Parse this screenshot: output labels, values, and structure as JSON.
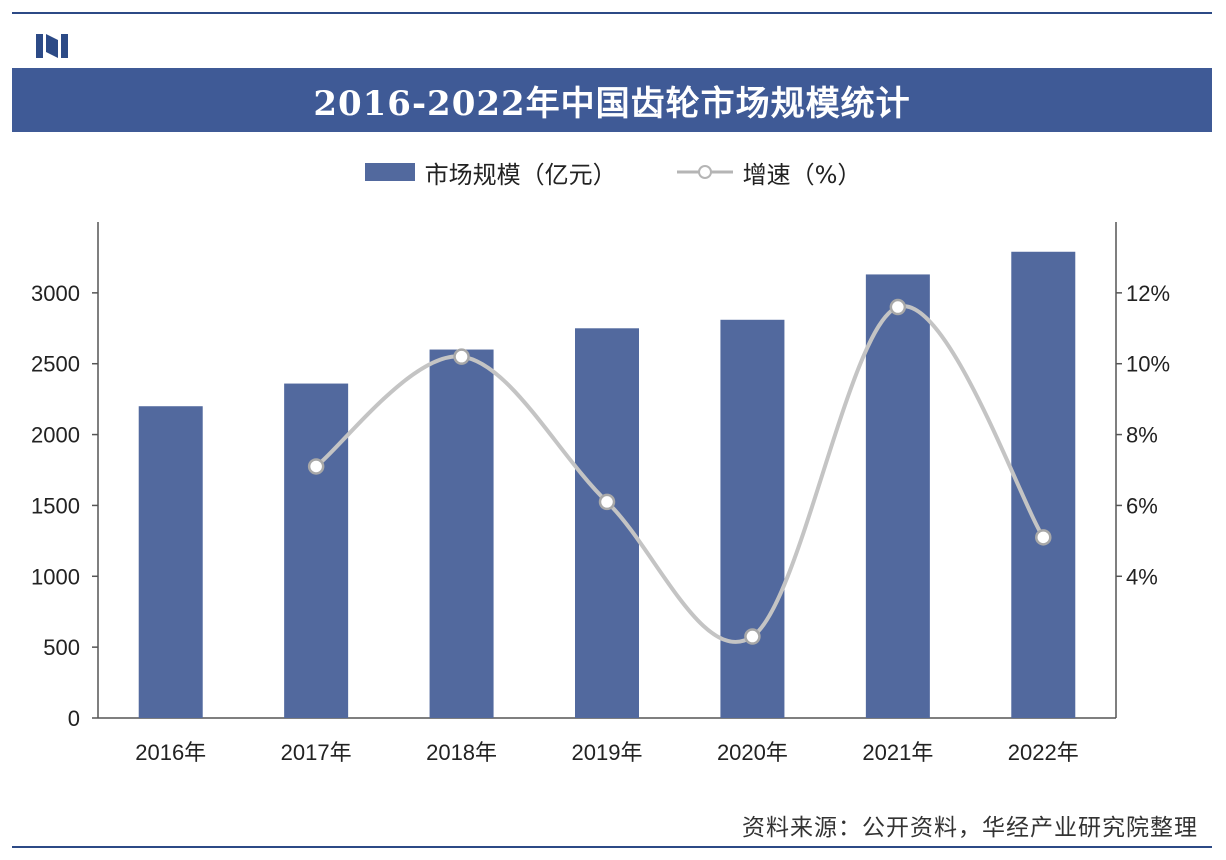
{
  "header": {
    "title": "2016-2022年中国齿轮市场规模统计"
  },
  "legend": {
    "bar_label": "市场规模（亿元）",
    "line_label": "增速（%）"
  },
  "footer": {
    "source": "资料来源：公开资料，华经产业研究院整理"
  },
  "colors": {
    "bar": "#52699e",
    "line": "#c4c4c4",
    "title_bg": "#3f5a96",
    "accent": "#2c4a86"
  },
  "chart_data": {
    "type": "bar",
    "categories": [
      "2016年",
      "2017年",
      "2018年",
      "2019年",
      "2020年",
      "2021年",
      "2022年"
    ],
    "series": [
      {
        "name": "市场规模（亿元）",
        "type": "bar",
        "axis": "left",
        "values": [
          2200,
          2360,
          2600,
          2750,
          2810,
          3130,
          3290
        ]
      },
      {
        "name": "增速（%）",
        "type": "line",
        "axis": "right",
        "values": [
          null,
          7.1,
          10.2,
          6.1,
          2.3,
          11.6,
          5.1
        ]
      }
    ],
    "y_left": {
      "ylim": [
        0,
        3500
      ],
      "ticks": [
        0,
        500,
        1000,
        1500,
        2000,
        2500,
        3000
      ]
    },
    "y_right": {
      "ylim": [
        0,
        14
      ],
      "ticks": [
        4,
        6,
        8,
        10,
        12
      ],
      "tick_suffix": "%"
    },
    "legend_position": "top",
    "grid": false
  }
}
